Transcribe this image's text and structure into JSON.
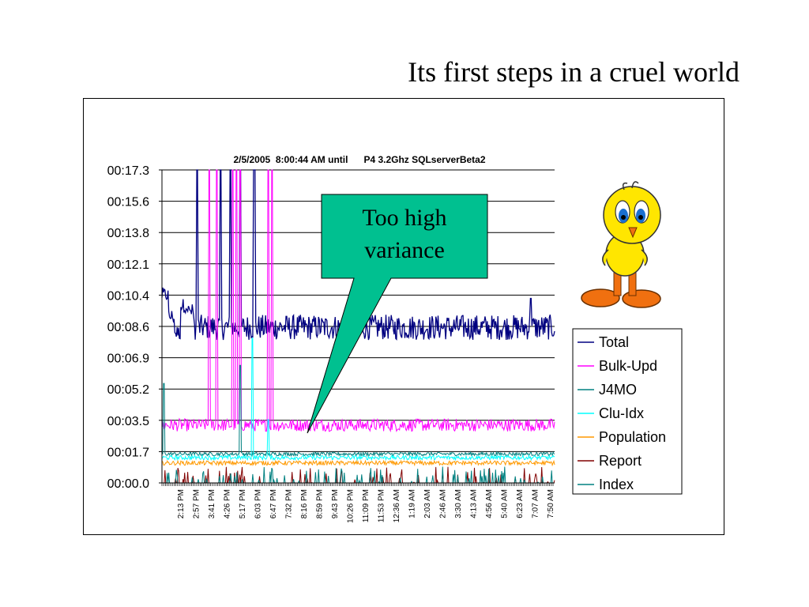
{
  "slide": {
    "title": "Its first steps in a cruel world"
  },
  "chart_data": {
    "type": "line",
    "title": "2/5/2005  8:00:44 AM until      P4 3.2Ghz SQLserverBeta2",
    "y_ticks": [
      "00:00.0",
      "00:01.7",
      "00:03.5",
      "00:05.2",
      "00:06.9",
      "00:08.6",
      "00:10.4",
      "00:12.1",
      "00:13.8",
      "00:15.6",
      "00:17.3"
    ],
    "ylim": [
      0,
      17.3
    ],
    "x_ticks": [
      "2:13 PM",
      "2:57 PM",
      "3:41 PM",
      "4:26 PM",
      "5:17 PM",
      "6:03 PM",
      "6:47 PM",
      "7:32 PM",
      "8:16 PM",
      "8:59 PM",
      "9:43 PM",
      "10:26 PM",
      "11:09 PM",
      "11:53 PM",
      "12:36 AM",
      "1:19 AM",
      "2:03 AM",
      "2:46 AM",
      "3:30 AM",
      "4:13 AM",
      "4:56 AM",
      "5:40 AM",
      "6:23 AM",
      "7:07 AM",
      "7:50 AM"
    ],
    "series": [
      {
        "name": "Total",
        "color": "#000080",
        "baseline": 8.6,
        "noise": 0.7,
        "startup": [
          10.4,
          9.2,
          8.3,
          9.8,
          9.5
        ],
        "spikes": [
          [
            0.09,
            17.3
          ],
          [
            0.15,
            17.3
          ],
          [
            0.175,
            17.3
          ],
          [
            0.2,
            17.3
          ],
          [
            0.235,
            17.3
          ],
          [
            0.94,
            10.2
          ]
        ]
      },
      {
        "name": "Bulk-Upd",
        "color": "#FF00FF",
        "baseline": 3.2,
        "noise": 0.35,
        "spikes": [
          [
            0.12,
            17.3
          ],
          [
            0.14,
            17.3
          ],
          [
            0.18,
            17.3
          ],
          [
            0.19,
            17.3
          ],
          [
            0.2,
            17.3
          ],
          [
            0.27,
            17.3
          ],
          [
            0.28,
            17.3
          ]
        ]
      },
      {
        "name": "J4MO",
        "color": "#008080",
        "baseline": 1.6,
        "noise": 0.1,
        "spikes": [
          [
            0.005,
            5.5
          ],
          [
            0.2,
            6.5
          ]
        ]
      },
      {
        "name": "Clu-Idx",
        "color": "#00FFFF",
        "baseline": 1.4,
        "noise": 0.12,
        "spikes": [
          [
            0.23,
            8.0
          ],
          [
            0.27,
            3.5
          ]
        ]
      },
      {
        "name": "Population",
        "color": "#FF9900",
        "baseline": 1.1,
        "noise": 0.12,
        "spikes": []
      },
      {
        "name": "Report",
        "color": "#800000",
        "baseline": 0.2,
        "noise": 0.1,
        "spikes": []
      },
      {
        "name": "Index",
        "color": "#008080",
        "baseline": 0.05,
        "noise": 0.02,
        "spikes": []
      }
    ],
    "legend_position": "right",
    "grid": true
  },
  "callout": {
    "text_line1": "Too high",
    "text_line2": "variance",
    "fill": "#00C090"
  },
  "mascot": {
    "name": "yellow-bird"
  }
}
